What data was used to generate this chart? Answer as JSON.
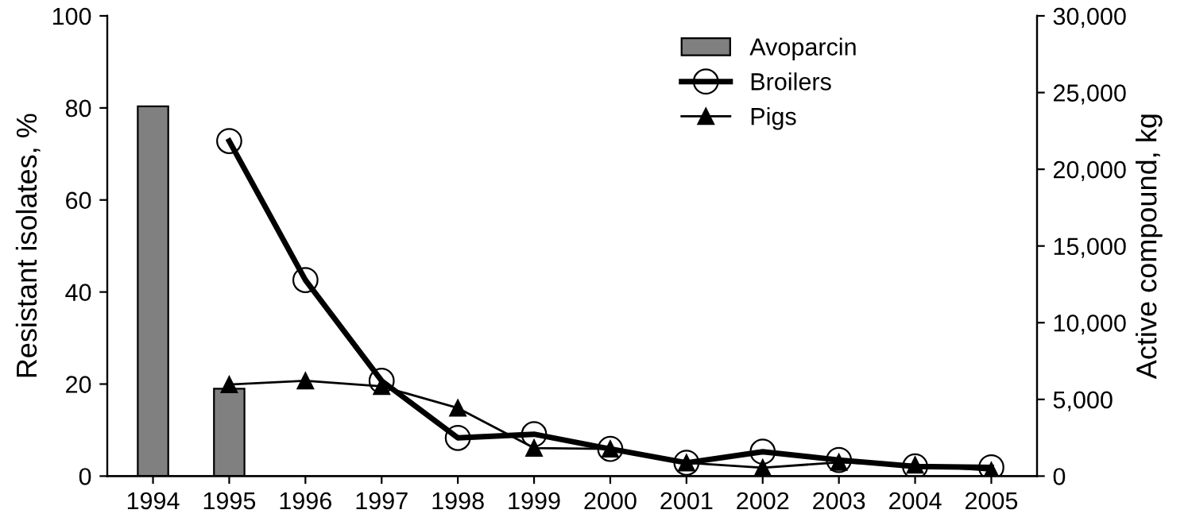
{
  "chart_data": {
    "type": "bar",
    "categories": [
      "1994",
      "1995",
      "1996",
      "1997",
      "1998",
      "1999",
      "2000",
      "2001",
      "2002",
      "2003",
      "2004",
      "2005"
    ],
    "ylabel": "Resistant isolates, %",
    "y2label": "Active compound, kg",
    "ylim": [
      0,
      100
    ],
    "yticks": [
      0,
      20,
      40,
      60,
      80,
      100
    ],
    "y2lim": [
      0,
      30000
    ],
    "y2ticks": [
      {
        "value": 0,
        "label": "0"
      },
      {
        "value": 5000,
        "label": "5,000"
      },
      {
        "value": 10000,
        "label": "10,000"
      },
      {
        "value": 15000,
        "label": "15,000"
      },
      {
        "value": 20000,
        "label": "20,000"
      },
      {
        "value": 25000,
        "label": "25,000"
      },
      {
        "value": 30000,
        "label": "30,000"
      }
    ],
    "grid": false,
    "legend": "top right",
    "series": [
      {
        "name": "Avoparcin",
        "axis": "y2",
        "color": "#808080",
        "values": [
          24100,
          5700,
          null,
          null,
          null,
          null,
          null,
          null,
          null,
          null,
          null,
          null
        ]
      },
      {
        "name": "Broilers",
        "type": "line",
        "axis": "y",
        "color": "#000000",
        "marker": "circle",
        "values": [
          null,
          72.8,
          42.6,
          20.7,
          8.3,
          9.1,
          5.9,
          2.9,
          5.3,
          3.5,
          2.1,
          1.9
        ]
      },
      {
        "name": "Pigs",
        "type": "line",
        "axis": "y",
        "color": "#000000",
        "marker": "triangle",
        "values": [
          null,
          19.9,
          20.7,
          19.5,
          14.8,
          6.1,
          5.9,
          2.9,
          1.8,
          3.0,
          2.4,
          1.2
        ]
      }
    ]
  }
}
